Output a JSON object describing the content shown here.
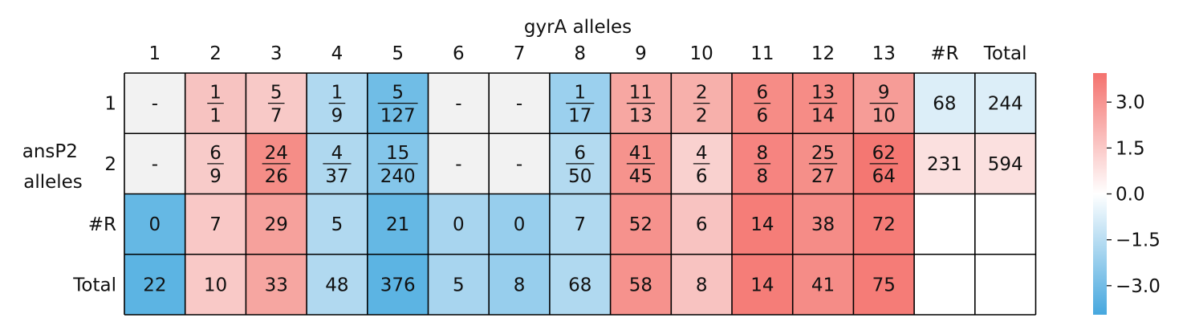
{
  "chart_data": {
    "type": "heatmap",
    "xlabel": "gyrA alleles",
    "ylabel": "ansP2 alleles",
    "x_labels": [
      "1",
      "2",
      "3",
      "4",
      "5",
      "6",
      "7",
      "8",
      "9",
      "10",
      "11",
      "12",
      "13",
      "#R",
      "Total"
    ],
    "y_labels": [
      "1",
      "2",
      "#R",
      "Total"
    ],
    "cells": [
      [
        {
          "text": "-",
          "fill": "#f2f2f2"
        },
        {
          "num": "1",
          "den": "1",
          "fill": "#f7c3c1"
        },
        {
          "num": "5",
          "den": "7",
          "fill": "#f8c9c7"
        },
        {
          "num": "1",
          "den": "9",
          "fill": "#b0d9f0"
        },
        {
          "num": "5",
          "den": "127",
          "fill": "#70bde6"
        },
        {
          "text": "-",
          "fill": "#f2f2f2"
        },
        {
          "text": "-",
          "fill": "#f2f2f2"
        },
        {
          "num": "1",
          "den": "17",
          "fill": "#9bd0ee"
        },
        {
          "num": "11",
          "den": "13",
          "fill": "#f7a7a2"
        },
        {
          "num": "2",
          "den": "2",
          "fill": "#f7b0ab"
        },
        {
          "num": "6",
          "den": "6",
          "fill": "#f68c86"
        },
        {
          "num": "13",
          "den": "14",
          "fill": "#f68c86"
        },
        {
          "num": "9",
          "den": "10",
          "fill": "#f69c97"
        },
        {
          "text": "68",
          "fill": "#dceef8"
        },
        {
          "text": "244",
          "fill": "#dceef8"
        }
      ],
      [
        {
          "text": "-",
          "fill": "#f2f2f2"
        },
        {
          "num": "6",
          "den": "9",
          "fill": "#f8cbc9"
        },
        {
          "num": "24",
          "den": "26",
          "fill": "#f58d87"
        },
        {
          "num": "4",
          "den": "37",
          "fill": "#afd8ef"
        },
        {
          "num": "15",
          "den": "240",
          "fill": "#84c6ea"
        },
        {
          "text": "-",
          "fill": "#f2f2f2"
        },
        {
          "text": "-",
          "fill": "#f2f2f2"
        },
        {
          "num": "6",
          "den": "50",
          "fill": "#b3daf0"
        },
        {
          "num": "41",
          "den": "45",
          "fill": "#f6938d"
        },
        {
          "num": "4",
          "den": "6",
          "fill": "#f9d1cf"
        },
        {
          "num": "8",
          "den": "8",
          "fill": "#f68480"
        },
        {
          "num": "25",
          "den": "27",
          "fill": "#f58f89"
        },
        {
          "num": "62",
          "den": "64",
          "fill": "#f47772"
        },
        {
          "text": "231",
          "fill": "#fbe0df"
        },
        {
          "text": "594",
          "fill": "#fbe0df"
        }
      ],
      [
        {
          "text": "0",
          "fill": "#65b8e4"
        },
        {
          "text": "7",
          "fill": "#f9c8c6"
        },
        {
          "text": "29",
          "fill": "#f6a19c"
        },
        {
          "text": "5",
          "fill": "#b1d9f0"
        },
        {
          "text": "21",
          "fill": "#65b8e4"
        },
        {
          "text": "0",
          "fill": "#a8d5ef"
        },
        {
          "text": "0",
          "fill": "#97ceed"
        },
        {
          "text": "7",
          "fill": "#b0d9f0"
        },
        {
          "text": "52",
          "fill": "#f6928d"
        },
        {
          "text": "6",
          "fill": "#f8c3c1"
        },
        {
          "text": "14",
          "fill": "#f57d78"
        },
        {
          "text": "38",
          "fill": "#f58c87"
        },
        {
          "text": "72",
          "fill": "#f57c77"
        },
        {
          "text": "",
          "fill": "#ffffff"
        },
        {
          "text": "",
          "fill": "#ffffff"
        }
      ],
      [
        {
          "text": "22",
          "fill": "#5cb4e3"
        },
        {
          "text": "10",
          "fill": "#f9c9c7"
        },
        {
          "text": "33",
          "fill": "#f6a6a1"
        },
        {
          "text": "48",
          "fill": "#b1d9f0"
        },
        {
          "text": "376",
          "fill": "#5cb4e3"
        },
        {
          "text": "5",
          "fill": "#a8d5ef"
        },
        {
          "text": "8",
          "fill": "#97ceed"
        },
        {
          "text": "68",
          "fill": "#b0d9f0"
        },
        {
          "text": "58",
          "fill": "#f6928d"
        },
        {
          "text": "8",
          "fill": "#f8c3c1"
        },
        {
          "text": "14",
          "fill": "#f57d78"
        },
        {
          "text": "41",
          "fill": "#f58c87"
        },
        {
          "text": "75",
          "fill": "#f57c77"
        },
        {
          "text": "",
          "fill": "#ffffff"
        },
        {
          "text": "",
          "fill": "#ffffff"
        }
      ]
    ],
    "colorbar": {
      "ticks": [
        "3.0",
        "1.5",
        "0.0",
        "−1.5",
        "−3.0"
      ],
      "tick_values": [
        3.0,
        1.5,
        0.0,
        -1.5,
        -3.0
      ],
      "range": [
        -3.95,
        3.95
      ],
      "colors": [
        "#46a7de",
        "#ffffff",
        "#f4726e"
      ]
    }
  }
}
